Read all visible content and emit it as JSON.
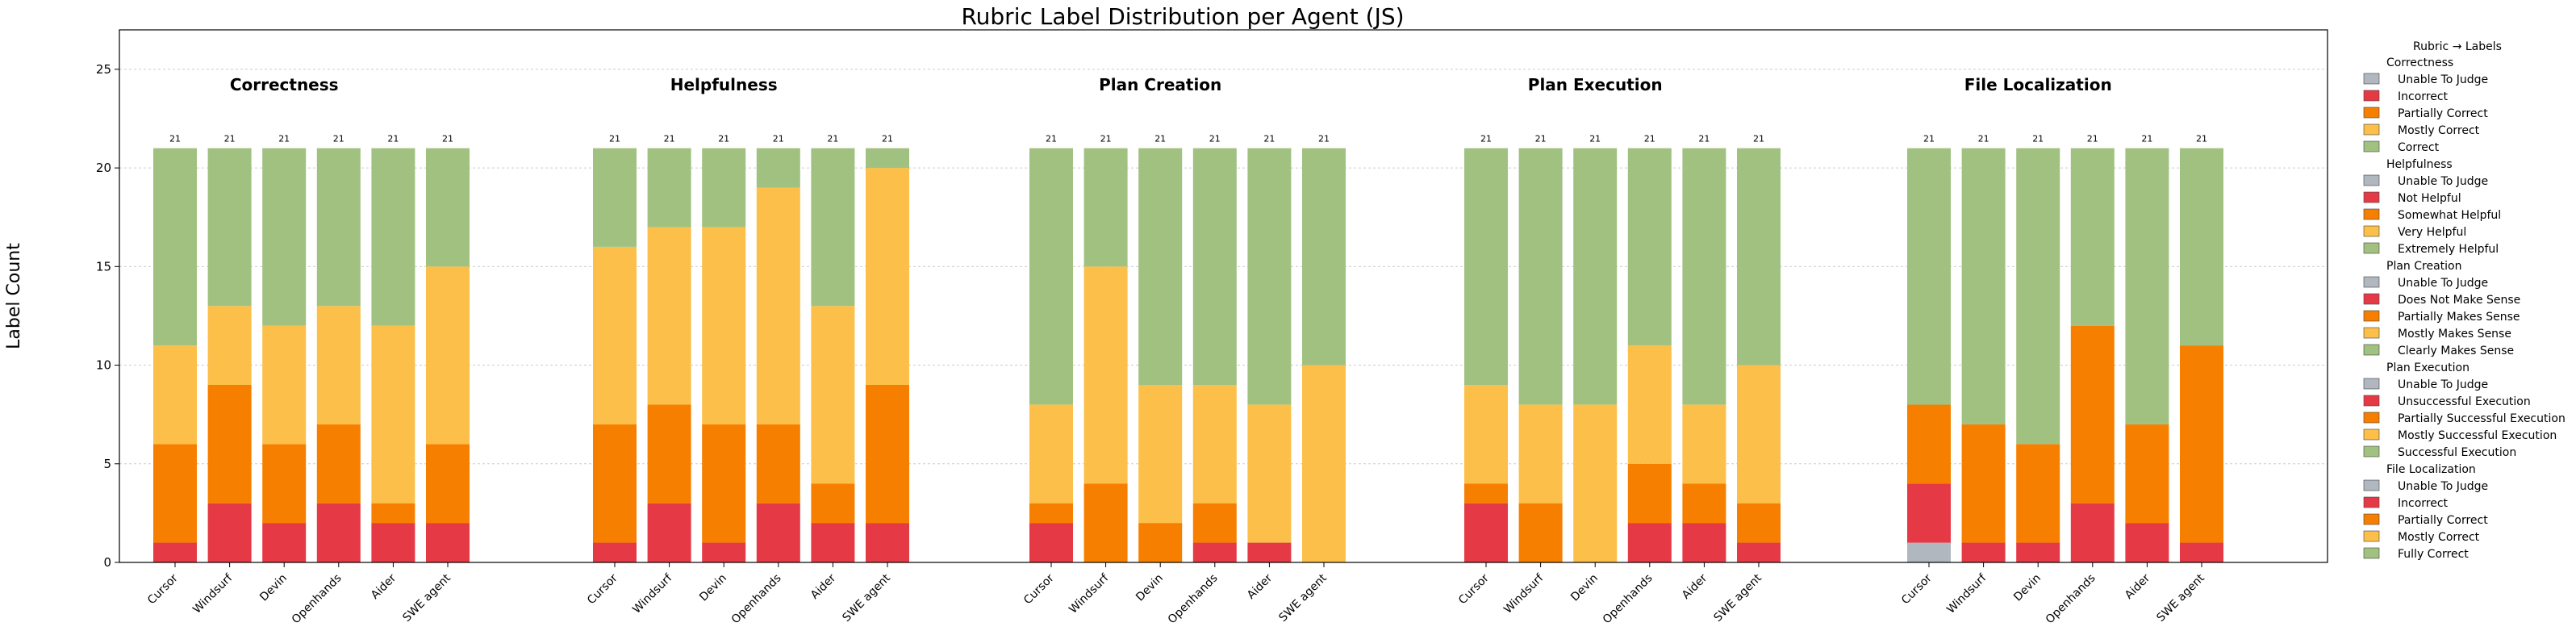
{
  "chart_data": {
    "type": "bar",
    "stacked": true,
    "title": "Rubric Label Distribution per Agent (JS)",
    "ylabel": "Label Count",
    "ylim": [
      0,
      27
    ],
    "yticks": [
      0,
      5,
      10,
      15,
      20,
      25
    ],
    "grid": "horizontal",
    "legend_position": "right",
    "legend_title": "Rubric → Labels",
    "agents": [
      "Cursor",
      "Windsurf",
      "Devin",
      "Openhands",
      "Aider",
      "SWE agent"
    ],
    "level_colors": [
      "#b0b7bf",
      "#e63946",
      "#f77f00",
      "#fcbf49",
      "#a1c181"
    ],
    "groups": [
      {
        "name": "Correctness",
        "labels": [
          "Unable To Judge",
          "Incorrect",
          "Partially Correct",
          "Mostly Correct",
          "Correct"
        ],
        "values": [
          [
            0,
            1,
            5,
            5,
            10
          ],
          [
            0,
            3,
            6,
            4,
            8
          ],
          [
            0,
            2,
            4,
            6,
            9
          ],
          [
            0,
            3,
            4,
            6,
            8
          ],
          [
            0,
            2,
            1,
            9,
            9
          ],
          [
            0,
            2,
            4,
            9,
            6
          ]
        ],
        "totals": [
          "21",
          "21",
          "21",
          "21",
          "21",
          "21"
        ]
      },
      {
        "name": "Helpfulness",
        "labels": [
          "Unable To Judge",
          "Not Helpful",
          "Somewhat Helpful",
          "Very Helpful",
          "Extremely Helpful"
        ],
        "values": [
          [
            0,
            1,
            6,
            9,
            5
          ],
          [
            0,
            3,
            5,
            9,
            4
          ],
          [
            0,
            1,
            6,
            10,
            4
          ],
          [
            0,
            3,
            4,
            12,
            2
          ],
          [
            0,
            2,
            2,
            9,
            8
          ],
          [
            0,
            2,
            7,
            11,
            1
          ]
        ],
        "totals": [
          "21",
          "21",
          "21",
          "21",
          "21",
          "21"
        ]
      },
      {
        "name": "Plan Creation",
        "labels": [
          "Unable To Judge",
          "Does Not Make Sense",
          "Partially Makes Sense",
          "Mostly Makes Sense",
          "Clearly Makes Sense"
        ],
        "values": [
          [
            0,
            2,
            1,
            5,
            13
          ],
          [
            0,
            0,
            4,
            11,
            6
          ],
          [
            0,
            0,
            2,
            7,
            12
          ],
          [
            0,
            1,
            2,
            6,
            12
          ],
          [
            0,
            1,
            0,
            7,
            13
          ],
          [
            0,
            0,
            0,
            10,
            11
          ]
        ],
        "totals": [
          "21",
          "21",
          "21",
          "21",
          "21",
          "21"
        ]
      },
      {
        "name": "Plan Execution",
        "labels": [
          "Unable To Judge",
          "Unsuccessful Execution",
          "Partially Successful Execution",
          "Mostly Successful Execution",
          "Successful Execution"
        ],
        "values": [
          [
            0,
            3,
            1,
            5,
            12
          ],
          [
            0,
            0,
            3,
            5,
            13
          ],
          [
            0,
            0,
            0,
            8,
            13
          ],
          [
            0,
            2,
            3,
            6,
            10
          ],
          [
            0,
            2,
            2,
            4,
            13
          ],
          [
            0,
            1,
            2,
            7,
            11
          ]
        ],
        "totals": [
          "21",
          "21",
          "21",
          "21",
          "21",
          "21"
        ]
      },
      {
        "name": "File Localization",
        "labels": [
          "Unable To Judge",
          "Incorrect",
          "Partially Correct",
          "Mostly Correct",
          "Fully Correct"
        ],
        "values": [
          [
            1,
            3,
            4,
            0,
            13
          ],
          [
            0,
            1,
            6,
            0,
            14
          ],
          [
            0,
            1,
            5,
            0,
            15
          ],
          [
            0,
            3,
            9,
            0,
            9
          ],
          [
            0,
            2,
            5,
            0,
            14
          ],
          [
            0,
            1,
            10,
            0,
            10
          ]
        ],
        "totals": [
          "21",
          "21",
          "21",
          "21",
          "21",
          "21"
        ]
      }
    ]
  }
}
